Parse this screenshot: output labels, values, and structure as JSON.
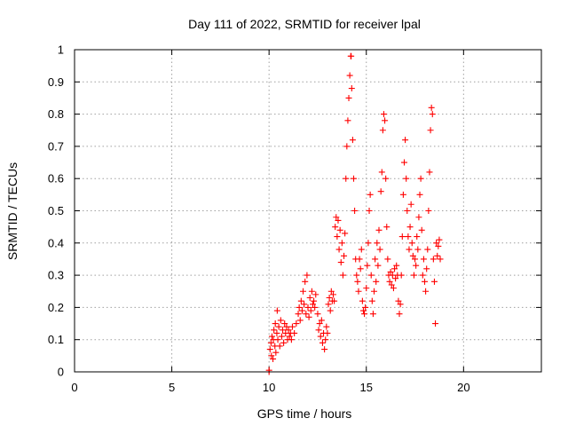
{
  "chart_data": {
    "type": "scatter",
    "title": "Day 111 of 2022, SRMTID for receiver lpal",
    "xlabel": "GPS time / hours",
    "ylabel": "SRMTID / TECUs",
    "xlim": [
      0,
      24
    ],
    "ylim": [
      0,
      1
    ],
    "grid": true,
    "marker": "+",
    "marker_color": "#ff0000",
    "x_ticks": [
      0,
      5,
      10,
      15,
      20
    ],
    "x_tick_labels": [
      "0",
      "5",
      "10",
      "15",
      "20"
    ],
    "y_ticks": [
      0,
      0.1,
      0.2,
      0.3,
      0.4,
      0.5,
      0.6,
      0.7,
      0.8,
      0.9,
      1
    ],
    "y_tick_labels": [
      "0",
      "0.1",
      "0.2",
      "0.3",
      "0.4",
      "0.5",
      "0.6",
      "0.7",
      "0.8",
      "0.9",
      "1"
    ],
    "series": [
      {
        "name": "SRMTID",
        "points": [
          [
            10.0,
            0.0
          ],
          [
            10.0,
            0.005
          ],
          [
            10.05,
            0.07
          ],
          [
            10.1,
            0.09
          ],
          [
            10.12,
            0.05
          ],
          [
            10.15,
            0.11
          ],
          [
            10.2,
            0.04
          ],
          [
            10.22,
            0.1
          ],
          [
            10.25,
            0.13
          ],
          [
            10.3,
            0.08
          ],
          [
            10.32,
            0.15
          ],
          [
            10.35,
            0.06
          ],
          [
            10.4,
            0.12
          ],
          [
            10.42,
            0.19
          ],
          [
            10.45,
            0.1
          ],
          [
            10.5,
            0.14
          ],
          [
            10.55,
            0.08
          ],
          [
            10.6,
            0.16
          ],
          [
            10.65,
            0.11
          ],
          [
            10.7,
            0.13
          ],
          [
            10.75,
            0.09
          ],
          [
            10.8,
            0.15
          ],
          [
            10.85,
            0.12
          ],
          [
            10.9,
            0.14
          ],
          [
            10.95,
            0.1
          ],
          [
            11.0,
            0.13
          ],
          [
            11.05,
            0.11
          ],
          [
            11.1,
            0.12
          ],
          [
            11.15,
            0.1
          ],
          [
            11.2,
            0.14
          ],
          [
            11.3,
            0.12
          ],
          [
            11.4,
            0.15
          ],
          [
            11.5,
            0.18
          ],
          [
            11.55,
            0.2
          ],
          [
            11.6,
            0.16
          ],
          [
            11.65,
            0.22
          ],
          [
            11.7,
            0.19
          ],
          [
            11.75,
            0.25
          ],
          [
            11.8,
            0.21
          ],
          [
            11.85,
            0.28
          ],
          [
            11.9,
            0.18
          ],
          [
            11.95,
            0.3
          ],
          [
            12.0,
            0.2
          ],
          [
            12.05,
            0.17
          ],
          [
            12.1,
            0.23
          ],
          [
            12.15,
            0.19
          ],
          [
            12.2,
            0.25
          ],
          [
            12.25,
            0.21
          ],
          [
            12.3,
            0.22
          ],
          [
            12.35,
            0.2
          ],
          [
            12.4,
            0.24
          ],
          [
            12.5,
            0.18
          ],
          [
            12.55,
            0.13
          ],
          [
            12.6,
            0.15
          ],
          [
            12.65,
            0.11
          ],
          [
            12.7,
            0.16
          ],
          [
            12.75,
            0.09
          ],
          [
            12.8,
            0.12
          ],
          [
            12.85,
            0.07
          ],
          [
            12.9,
            0.1
          ],
          [
            12.95,
            0.14
          ],
          [
            13.0,
            0.12
          ],
          [
            13.05,
            0.21
          ],
          [
            13.1,
            0.23
          ],
          [
            13.15,
            0.19
          ],
          [
            13.2,
            0.25
          ],
          [
            13.25,
            0.22
          ],
          [
            13.3,
            0.24
          ],
          [
            13.35,
            0.22
          ],
          [
            13.4,
            0.45
          ],
          [
            13.45,
            0.48
          ],
          [
            13.5,
            0.42
          ],
          [
            13.55,
            0.47
          ],
          [
            13.6,
            0.38
          ],
          [
            13.65,
            0.44
          ],
          [
            13.7,
            0.34
          ],
          [
            13.75,
            0.4
          ],
          [
            13.8,
            0.3
          ],
          [
            13.85,
            0.36
          ],
          [
            13.9,
            0.43
          ],
          [
            13.95,
            0.6
          ],
          [
            14.0,
            0.7
          ],
          [
            14.05,
            0.78
          ],
          [
            14.1,
            0.85
          ],
          [
            14.15,
            0.92
          ],
          [
            14.2,
            0.98
          ],
          [
            14.22,
            0.98
          ],
          [
            14.25,
            0.88
          ],
          [
            14.3,
            0.72
          ],
          [
            14.35,
            0.6
          ],
          [
            14.4,
            0.5
          ],
          [
            14.45,
            0.35
          ],
          [
            14.5,
            0.3
          ],
          [
            14.55,
            0.28
          ],
          [
            14.6,
            0.25
          ],
          [
            14.65,
            0.35
          ],
          [
            14.7,
            0.32
          ],
          [
            14.75,
            0.38
          ],
          [
            14.8,
            0.22
          ],
          [
            14.85,
            0.19
          ],
          [
            14.9,
            0.18
          ],
          [
            14.95,
            0.2
          ],
          [
            15.0,
            0.26
          ],
          [
            15.05,
            0.33
          ],
          [
            15.1,
            0.4
          ],
          [
            15.15,
            0.5
          ],
          [
            15.2,
            0.55
          ],
          [
            15.25,
            0.3
          ],
          [
            15.3,
            0.22
          ],
          [
            15.35,
            0.18
          ],
          [
            15.4,
            0.25
          ],
          [
            15.45,
            0.35
          ],
          [
            15.5,
            0.28
          ],
          [
            15.55,
            0.4
          ],
          [
            15.6,
            0.33
          ],
          [
            15.65,
            0.44
          ],
          [
            15.7,
            0.38
          ],
          [
            15.75,
            0.56
          ],
          [
            15.8,
            0.62
          ],
          [
            15.85,
            0.75
          ],
          [
            15.9,
            0.8
          ],
          [
            15.95,
            0.78
          ],
          [
            16.0,
            0.6
          ],
          [
            16.05,
            0.45
          ],
          [
            16.1,
            0.35
          ],
          [
            16.15,
            0.3
          ],
          [
            16.2,
            0.28
          ],
          [
            16.25,
            0.31
          ],
          [
            16.3,
            0.27
          ],
          [
            16.35,
            0.3
          ],
          [
            16.4,
            0.26
          ],
          [
            16.45,
            0.32
          ],
          [
            16.5,
            0.29
          ],
          [
            16.55,
            0.33
          ],
          [
            16.6,
            0.3
          ],
          [
            16.65,
            0.22
          ],
          [
            16.7,
            0.18
          ],
          [
            16.75,
            0.21
          ],
          [
            16.8,
            0.3
          ],
          [
            16.85,
            0.42
          ],
          [
            16.9,
            0.55
          ],
          [
            16.95,
            0.65
          ],
          [
            17.0,
            0.72
          ],
          [
            17.05,
            0.6
          ],
          [
            17.1,
            0.5
          ],
          [
            17.15,
            0.42
          ],
          [
            17.2,
            0.38
          ],
          [
            17.25,
            0.45
          ],
          [
            17.3,
            0.52
          ],
          [
            17.35,
            0.4
          ],
          [
            17.4,
            0.36
          ],
          [
            17.45,
            0.3
          ],
          [
            17.5,
            0.35
          ],
          [
            17.55,
            0.33
          ],
          [
            17.6,
            0.42
          ],
          [
            17.65,
            0.38
          ],
          [
            17.7,
            0.48
          ],
          [
            17.75,
            0.55
          ],
          [
            17.8,
            0.6
          ],
          [
            17.85,
            0.44
          ],
          [
            17.9,
            0.3
          ],
          [
            17.95,
            0.35
          ],
          [
            18.0,
            0.28
          ],
          [
            18.05,
            0.25
          ],
          [
            18.1,
            0.32
          ],
          [
            18.15,
            0.38
          ],
          [
            18.2,
            0.5
          ],
          [
            18.25,
            0.62
          ],
          [
            18.3,
            0.75
          ],
          [
            18.35,
            0.82
          ],
          [
            18.4,
            0.8
          ],
          [
            18.45,
            0.35
          ],
          [
            18.5,
            0.28
          ],
          [
            18.55,
            0.15
          ],
          [
            18.6,
            0.4
          ],
          [
            18.65,
            0.36
          ],
          [
            18.7,
            0.39
          ],
          [
            18.75,
            0.41
          ],
          [
            18.8,
            0.35
          ]
        ]
      }
    ]
  }
}
